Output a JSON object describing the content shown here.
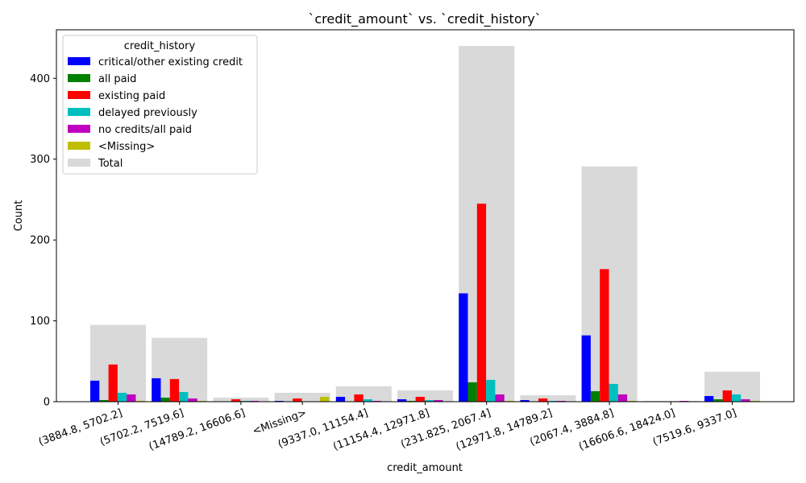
{
  "chart_data": {
    "type": "bar",
    "title": "`credit_amount` vs. `credit_history`",
    "xlabel": "credit_amount",
    "ylabel": "Count",
    "ylim": [
      0,
      460
    ],
    "yticks": [
      0,
      100,
      200,
      300,
      400
    ],
    "grid": false,
    "legend_title": "credit_history",
    "legend_position": "top-left",
    "categories": [
      "(3884.8, 5702.2]",
      "(5702.2, 7519.6]",
      "(14789.2, 16606.6]",
      "<Missing>",
      "(9337.0, 11154.4]",
      "(11154.4, 12971.8]",
      "(231.825, 2067.4]",
      "(12971.8, 14789.2]",
      "(2067.4, 3884.8]",
      "(16606.6, 18424.0]",
      "(7519.6, 9337.0]"
    ],
    "series": [
      {
        "name": "critical/other existing credit",
        "color": "#0000ff",
        "values": [
          26,
          29,
          0,
          1,
          6,
          3,
          134,
          2,
          82,
          0,
          7
        ]
      },
      {
        "name": "all paid",
        "color": "#008000",
        "values": [
          2,
          5,
          0,
          0,
          0,
          1,
          24,
          0,
          13,
          0,
          3
        ]
      },
      {
        "name": "existing paid",
        "color": "#ff0000",
        "values": [
          46,
          28,
          3,
          4,
          9,
          6,
          245,
          4,
          164,
          0,
          14
        ]
      },
      {
        "name": "delayed previously",
        "color": "#00bfbf",
        "values": [
          11,
          12,
          1,
          0,
          3,
          2,
          27,
          1,
          22,
          0,
          9
        ]
      },
      {
        "name": "no credits/all paid",
        "color": "#bf00bf",
        "values": [
          9,
          4,
          1,
          0,
          1,
          2,
          9,
          1,
          9,
          1,
          3
        ]
      },
      {
        "name": "<Missing>",
        "color": "#bfbf00",
        "values": [
          1,
          1,
          0,
          6,
          0,
          0,
          1,
          0,
          1,
          0,
          1
        ]
      }
    ],
    "total": {
      "name": "Total",
      "color": "#d9d9d9",
      "values": [
        95,
        79,
        5,
        11,
        19,
        14,
        440,
        8,
        291,
        1,
        37
      ]
    }
  }
}
